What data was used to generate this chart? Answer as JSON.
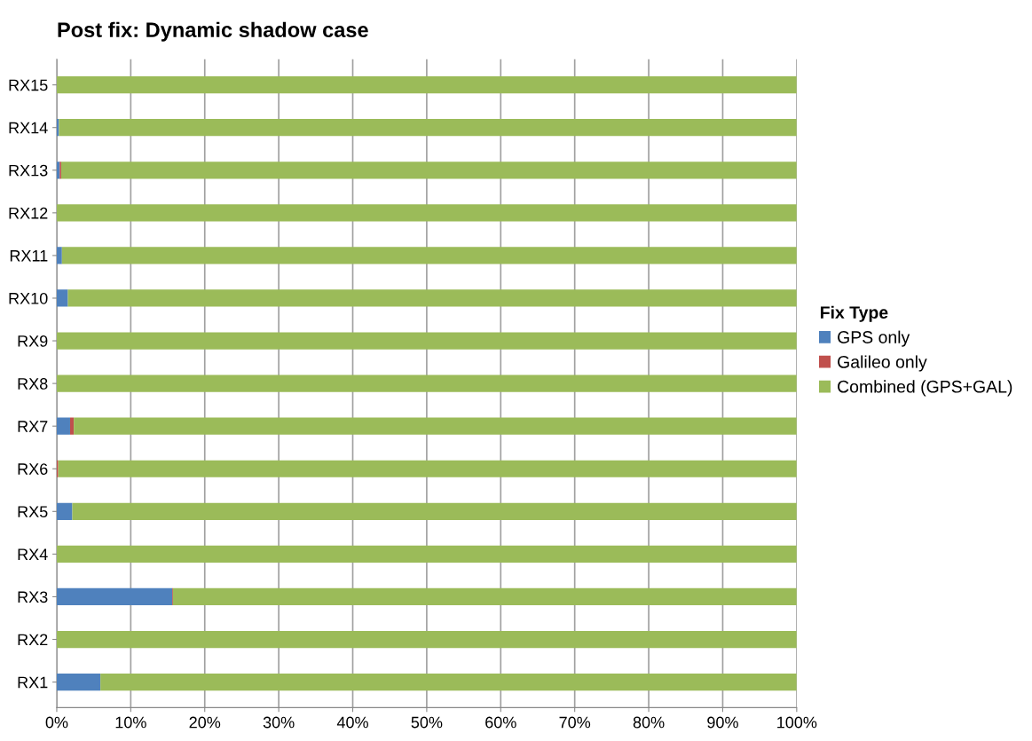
{
  "chart_data": {
    "type": "bar",
    "orientation": "horizontal",
    "stacked": true,
    "title": "Post fix: Dynamic shadow case",
    "legend_title": "Fix Type",
    "legend": "right",
    "categories": [
      "RX15",
      "RX14",
      "RX13",
      "RX12",
      "RX11",
      "RX10",
      "RX9",
      "RX8",
      "RX7",
      "RX6",
      "RX5",
      "RX4",
      "RX3",
      "RX2",
      "RX1"
    ],
    "series": [
      {
        "name": "GPS only",
        "color": "#4f81bd",
        "values": [
          0,
          0.3,
          0.4,
          0,
          0.7,
          1.5,
          0,
          0,
          1.8,
          0,
          2.1,
          0,
          15.6,
          0,
          5.9
        ]
      },
      {
        "name": "Galileo only",
        "color": "#c0504d",
        "values": [
          0,
          0,
          0.2,
          0,
          0,
          0,
          0,
          0,
          0.5,
          0.2,
          0,
          0,
          0.1,
          0,
          0
        ]
      },
      {
        "name": "Combined (GPS+GAL)",
        "color": "#9bbb59",
        "values": [
          100,
          99.7,
          99.4,
          100,
          99.3,
          98.5,
          100,
          100,
          97.7,
          99.8,
          97.9,
          100,
          84.3,
          100,
          94.1
        ]
      }
    ],
    "xlim": [
      0,
      100
    ],
    "xticks": [
      {
        "value": 0,
        "label": "0%"
      },
      {
        "value": 10,
        "label": "10%"
      },
      {
        "value": 20,
        "label": "20%"
      },
      {
        "value": 30,
        "label": "30%"
      },
      {
        "value": 40,
        "label": "40%"
      },
      {
        "value": 50,
        "label": "50%"
      },
      {
        "value": 60,
        "label": "60%"
      },
      {
        "value": 70,
        "label": "70%"
      },
      {
        "value": 80,
        "label": "80%"
      },
      {
        "value": 90,
        "label": "90%"
      },
      {
        "value": 100,
        "label": "100%"
      }
    ],
    "grid": "x"
  }
}
